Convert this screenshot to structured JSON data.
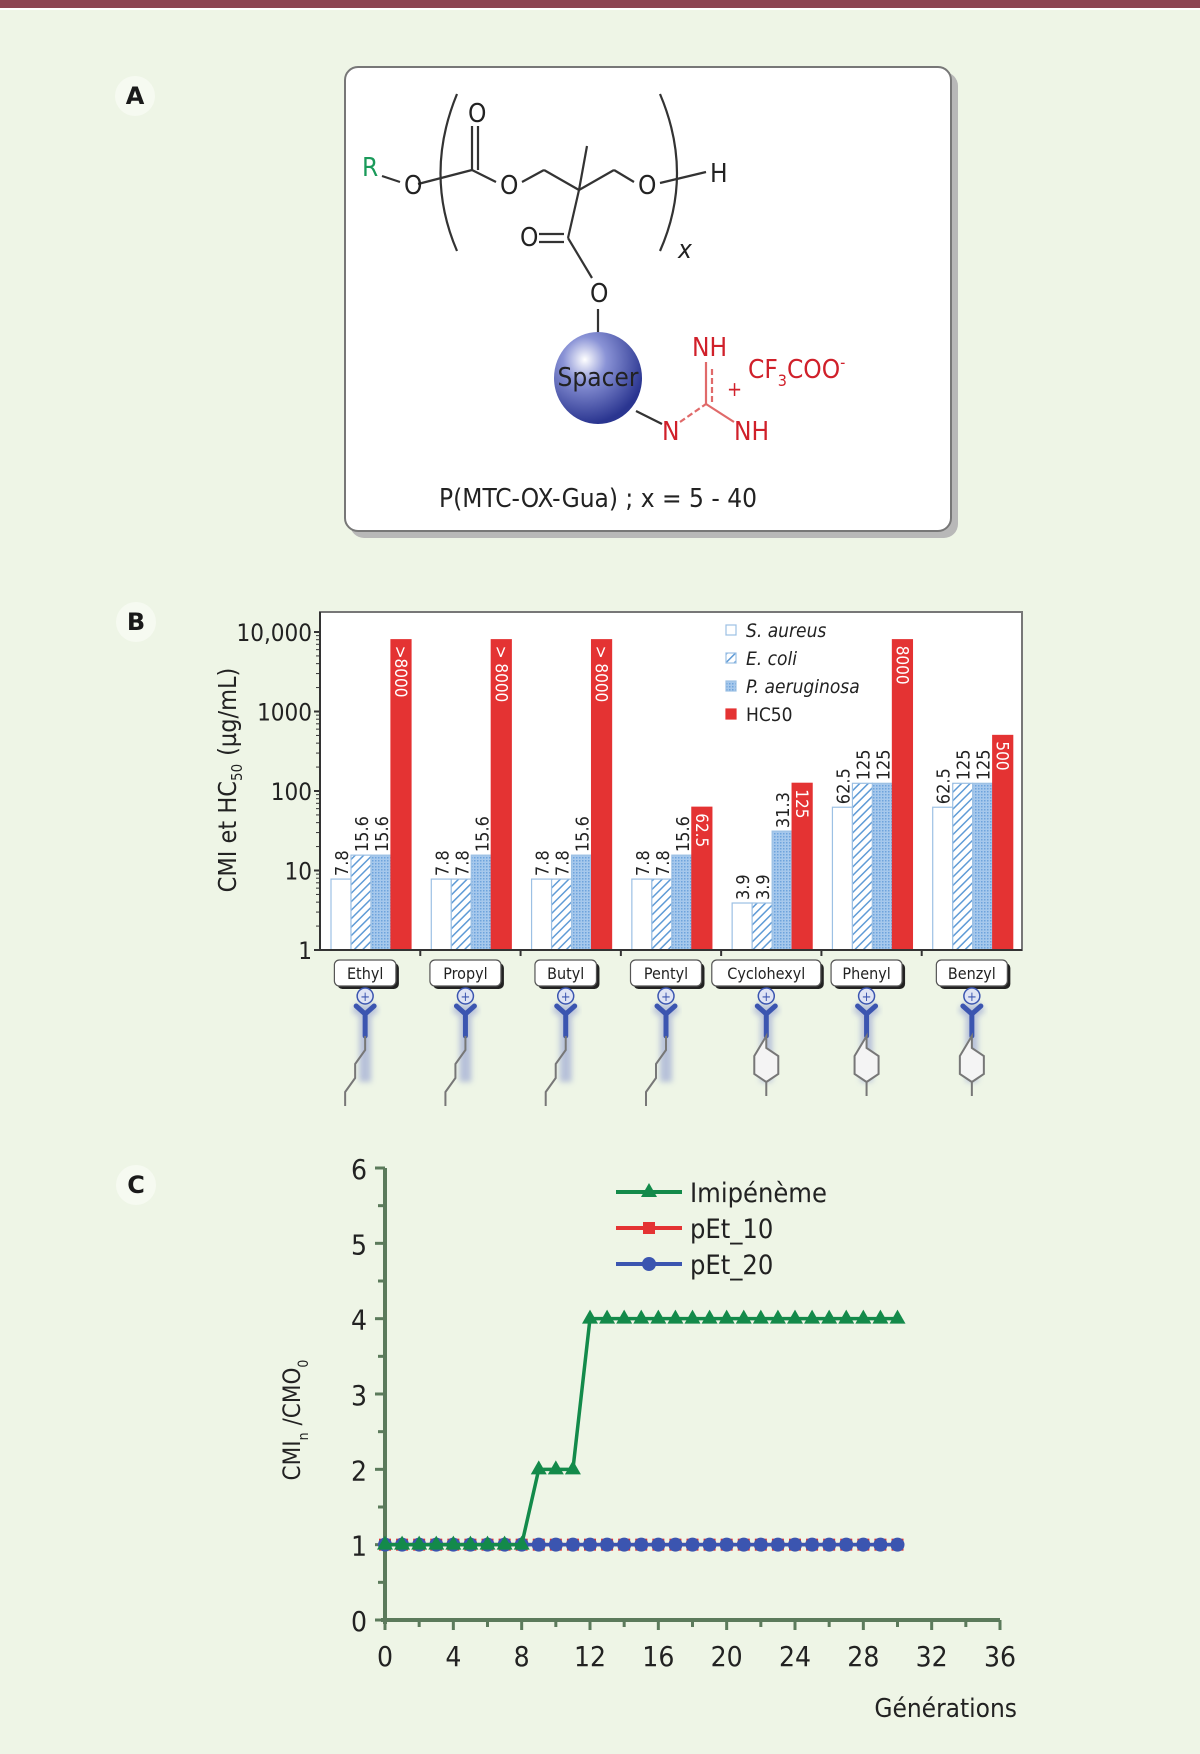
{
  "panel_labels": {
    "a": "A",
    "b": "B",
    "c": "C"
  },
  "structure": {
    "r_group": "R",
    "o_label": "O",
    "h_label": "H",
    "subscript_x": "x",
    "spacer_label": "Spacer",
    "nh_top": "NH",
    "nh_bottom": "NH",
    "n_label": "N",
    "plus": "+",
    "counterion": "CF",
    "counterion_sub": "3",
    "counterion_rest": "COO",
    "counterion_charge": "-",
    "caption": "P(MTC-OX-Gua) ; x = 5 - 40",
    "colors": {
      "r_group": "#1a9a5a",
      "guanidinium": "#d0202a",
      "spacer": "#3a47a8"
    }
  },
  "chart_data": [
    {
      "type": "bar",
      "scale": "log",
      "title": "",
      "xlabel": "",
      "ylabel": "CMI et HC50 (µg/mL)",
      "ylabel_main": "CMI et HC",
      "ylabel_sub": "50",
      "ylabel_units": "(µg/mL)",
      "ylim": [
        1,
        10000
      ],
      "yticks": [
        1,
        10,
        100,
        1000,
        10000
      ],
      "ytick_labels": [
        "1",
        "10",
        "100",
        "1000",
        "10,000"
      ],
      "legend_position": "top-right",
      "categories": [
        "Ethyl",
        "Propyl",
        "Butyl",
        "Pentyl",
        "Cyclohexyl",
        "Phenyl",
        "Benzyl"
      ],
      "series": [
        {
          "name": "S. aureus",
          "style": "open",
          "color": "#9cc0e4",
          "values": [
            7.8,
            7.8,
            7.8,
            7.8,
            3.9,
            62.5,
            62.5
          ],
          "labels": [
            "7.8",
            "7.8",
            "7.8",
            "7.8",
            "3.9",
            "62.5",
            "62.5"
          ]
        },
        {
          "name": "E. coli",
          "style": "hatched",
          "color": "#5f9bd6",
          "values": [
            15.6,
            7.8,
            7.8,
            7.8,
            3.9,
            125,
            125
          ],
          "labels": [
            "15.6",
            "7.8",
            "7.8",
            "7.8",
            "3.9",
            "125",
            "125"
          ]
        },
        {
          "name": "P. aeruginosa",
          "style": "dotted",
          "color": "#8bb8e6",
          "values": [
            15.6,
            15.6,
            15.6,
            15.6,
            31.3,
            125,
            125
          ],
          "labels": [
            "15.6",
            "15.6",
            "15.6",
            "15.6",
            "31.3",
            "125",
            "125"
          ]
        },
        {
          "name": "HC50",
          "style": "solid",
          "color": "#e43333",
          "values": [
            8000,
            8000,
            8000,
            62.5,
            125,
            8000,
            500
          ],
          "labels": [
            ">8000",
            "> 8000",
            "> 8000",
            "62.5",
            "125",
            "8000",
            "500"
          ]
        }
      ]
    },
    {
      "type": "line",
      "title": "",
      "xlabel": "Générations",
      "ylabel": "CMIn/CMO0",
      "ylabel_a": "CMI",
      "ylabel_sub1": "n",
      "ylabel_b": " /CMO",
      "ylabel_sub2": "0",
      "xlim": [
        0,
        36
      ],
      "ylim": [
        0,
        6
      ],
      "xticks": [
        0,
        4,
        8,
        12,
        16,
        20,
        24,
        28,
        32,
        36
      ],
      "yticks": [
        0,
        1,
        2,
        3,
        4,
        5,
        6
      ],
      "grid": false,
      "legend_position": "top-right",
      "x": [
        0,
        1,
        2,
        3,
        4,
        5,
        6,
        7,
        8,
        9,
        10,
        11,
        12,
        13,
        14,
        15,
        16,
        17,
        18,
        19,
        20,
        21,
        22,
        23,
        24,
        25,
        26,
        27,
        28,
        29,
        30
      ],
      "series": [
        {
          "name": "Imipénème",
          "marker": "triangle",
          "color": "#138a4a",
          "values": [
            1,
            1,
            1,
            1,
            1,
            1,
            1,
            1,
            1,
            2,
            2,
            2,
            4,
            4,
            4,
            4,
            4,
            4,
            4,
            4,
            4,
            4,
            4,
            4,
            4,
            4,
            4,
            4,
            4,
            4,
            4
          ]
        },
        {
          "name": "pEt_10",
          "marker": "square",
          "color": "#e43333",
          "values": [
            1,
            1,
            1,
            1,
            1,
            1,
            1,
            1,
            1,
            1,
            1,
            1,
            1,
            1,
            1,
            1,
            1,
            1,
            1,
            1,
            1,
            1,
            1,
            1,
            1,
            1,
            1,
            1,
            1,
            1,
            1
          ]
        },
        {
          "name": "pEt_20",
          "marker": "circle",
          "color": "#3b55b0",
          "values": [
            1,
            1,
            1,
            1,
            1,
            1,
            1,
            1,
            1,
            1,
            1,
            1,
            1,
            1,
            1,
            1,
            1,
            1,
            1,
            1,
            1,
            1,
            1,
            1,
            1,
            1,
            1,
            1,
            1,
            1,
            1
          ]
        }
      ]
    }
  ]
}
